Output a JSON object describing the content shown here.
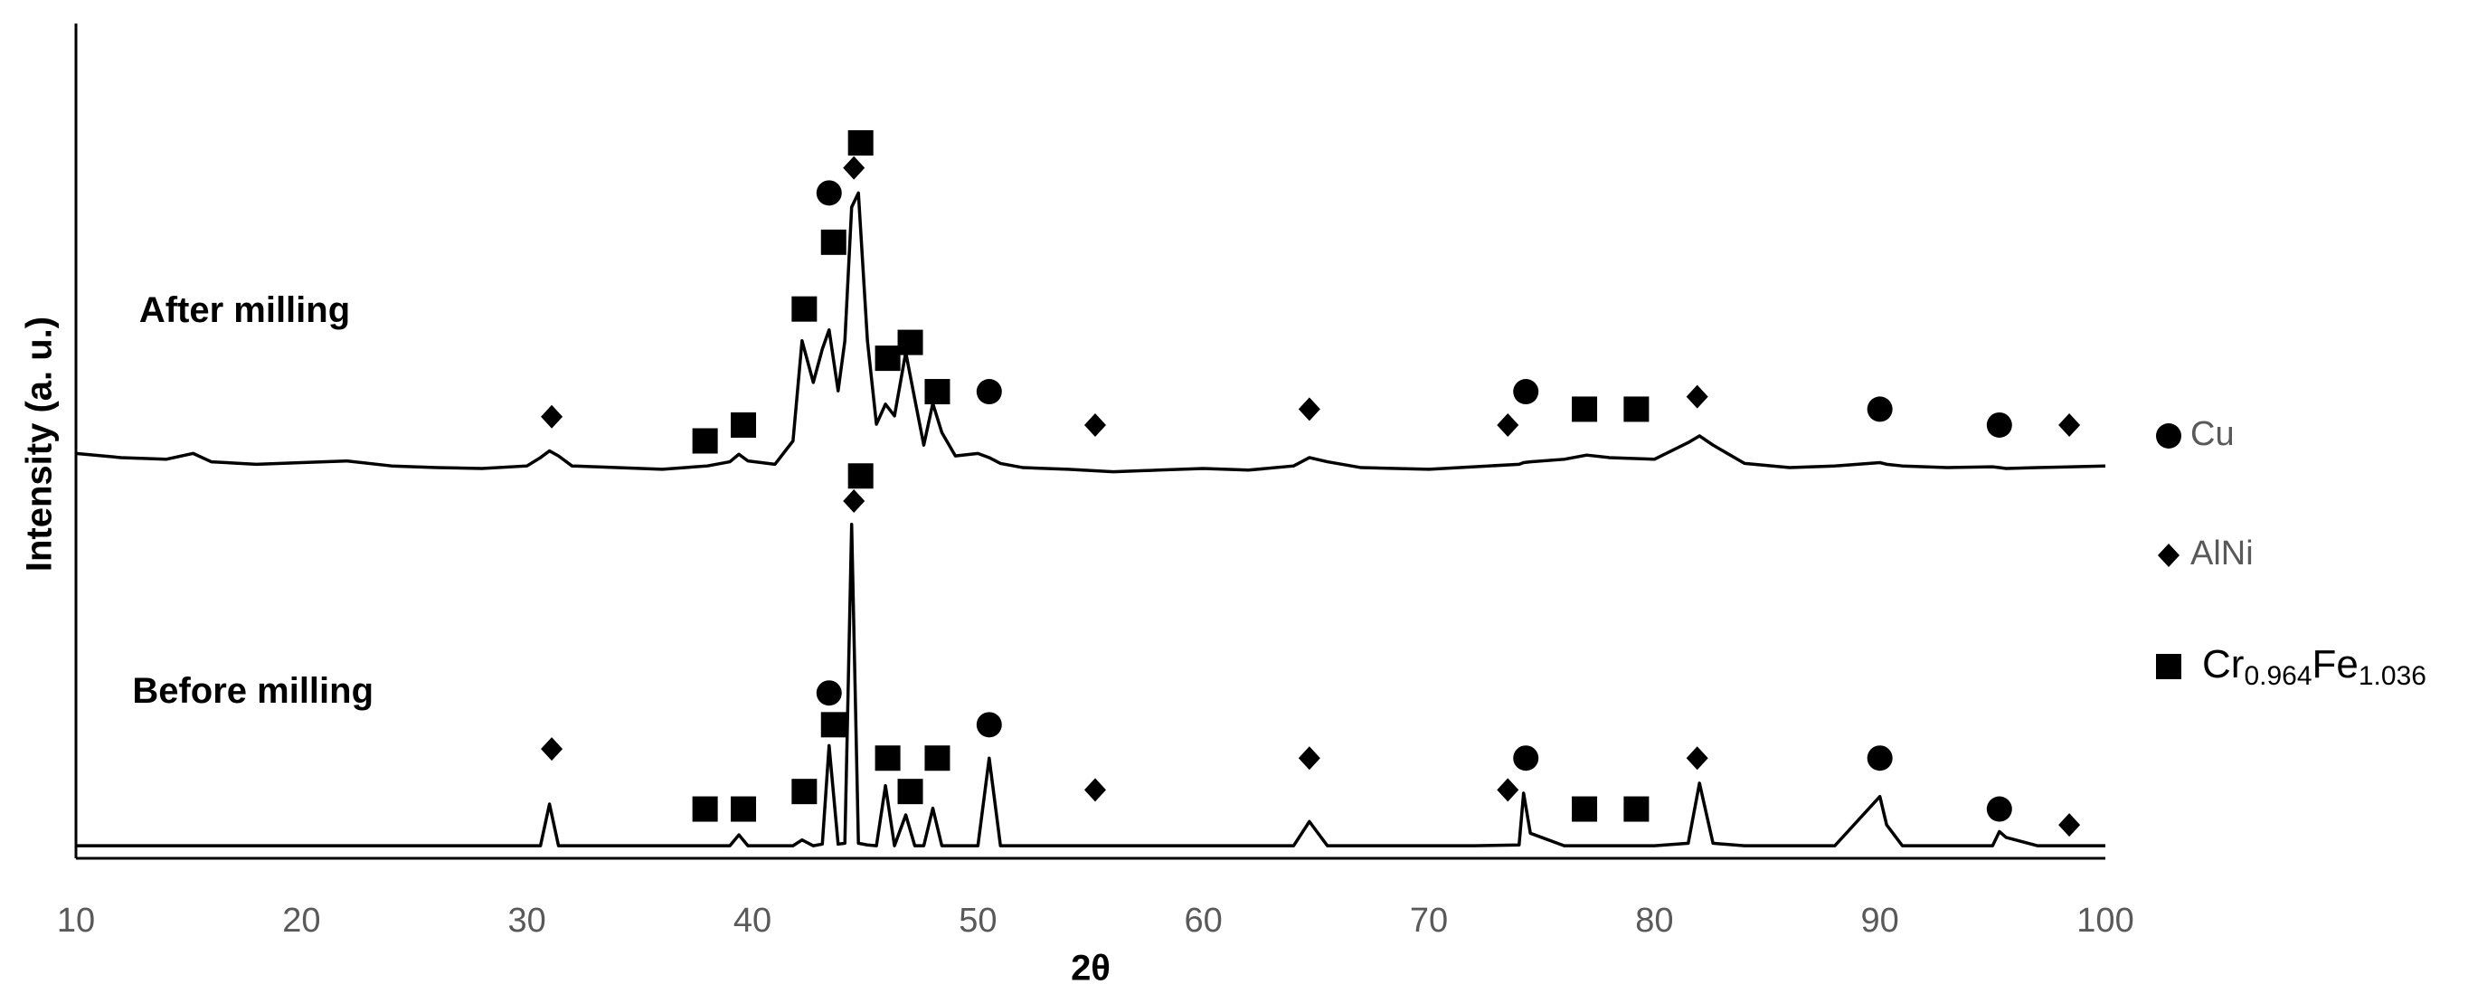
{
  "chart_data": {
    "type": "line",
    "x_label": "2θ",
    "y_label": "Intensity (a. u.)",
    "xlim": [
      10,
      100
    ],
    "xticks": [
      10,
      20,
      30,
      40,
      50,
      60,
      70,
      80,
      90,
      100
    ],
    "ylim": [
      0,
      100
    ],
    "grid": false,
    "legend_position": "right",
    "annotations": [
      {
        "text": "After milling",
        "x": 12.8,
        "y": 65.4
      },
      {
        "text": "Before milling",
        "x": 12.5,
        "y": 19.8
      }
    ],
    "x": [
      10,
      12,
      14,
      15.2,
      16,
      18,
      20,
      22,
      24,
      26,
      28,
      30,
      30.6,
      31,
      31.4,
      32,
      34,
      36,
      38,
      39,
      39.4,
      39.8,
      41,
      41.8,
      42.2,
      42.7,
      43.1,
      43.4,
      43.8,
      44.1,
      44.4,
      44.7,
      45.1,
      45.5,
      45.9,
      46.3,
      46.8,
      47.2,
      47.6,
      48.0,
      48.4,
      49,
      50,
      50.5,
      51,
      52,
      54,
      56,
      58,
      60,
      62,
      64,
      64.7,
      65.5,
      67,
      70,
      72,
      74,
      74.2,
      74.5,
      76,
      77,
      78,
      80,
      81.5,
      82,
      82.6,
      84,
      86,
      88,
      90,
      90.3,
      91,
      93,
      95,
      95.3,
      95.6,
      97,
      100
    ],
    "series": [
      {
        "color": "#000000",
        "values": [
          48.5,
          48,
          47.8,
          48.5,
          47.5,
          47.2,
          47.4,
          47.6,
          47,
          46.8,
          46.7,
          47,
          48,
          48.8,
          48.2,
          47,
          46.8,
          46.6,
          47,
          47.5,
          48.4,
          47.6,
          47.2,
          50,
          62,
          57,
          61,
          63.3,
          56,
          62,
          78,
          79.7,
          62,
          52,
          54.4,
          53,
          60.6,
          55,
          49.5,
          54.5,
          51,
          48.2,
          48.5,
          48,
          47.3,
          46.8,
          46.6,
          46.3,
          46.5,
          46.7,
          46.5,
          47,
          48,
          47.5,
          46.8,
          46.6,
          46.9,
          47.2,
          47.4,
          47.5,
          47.8,
          48.3,
          48,
          47.8,
          49.8,
          50.6,
          49.5,
          47.3,
          46.8,
          47,
          47.4,
          47.2,
          47,
          46.8,
          46.9,
          46.8,
          46.7,
          46.8,
          47
        ]
      },
      {
        "color": "#000000",
        "values": [
          1.5,
          1.5,
          1.5,
          1.5,
          1.5,
          1.5,
          1.5,
          1.5,
          1.5,
          1.5,
          1.5,
          1.5,
          1.5,
          6.5,
          1.5,
          1.5,
          1.5,
          1.5,
          1.5,
          1.5,
          2.8,
          1.5,
          1.5,
          1.5,
          2.2,
          1.5,
          1.7,
          13.5,
          1.7,
          1.8,
          40,
          1.8,
          1.6,
          1.5,
          8.7,
          1.5,
          5.2,
          1.5,
          1.5,
          6,
          1.5,
          1.5,
          1.5,
          12,
          1.5,
          1.5,
          1.5,
          1.5,
          1.5,
          1.5,
          1.5,
          1.5,
          4.4,
          1.5,
          1.5,
          1.5,
          1.5,
          1.6,
          7.8,
          3,
          1.5,
          1.5,
          1.5,
          1.5,
          1.8,
          9,
          1.8,
          1.5,
          1.5,
          1.5,
          7.4,
          4,
          1.5,
          1.5,
          1.5,
          3.2,
          2.5,
          1.5,
          1.5
        ]
      }
    ],
    "phase_markers": [
      {
        "name": "Cu",
        "shape": "circle",
        "color": "#000000",
        "x": [
          43.4,
          50.5,
          74.3,
          90.0,
          95.3,
          43.4,
          50.5,
          74.3,
          90.0,
          95.3
        ],
        "y": [
          79.7,
          55.9,
          55.9,
          53.8,
          51.9,
          19.8,
          16,
          12,
          12,
          5.9
        ]
      },
      {
        "name": "AlNi",
        "shape": "diamond",
        "color": "#000000",
        "x": [
          31.1,
          44.5,
          55.2,
          64.7,
          73.5,
          81.9,
          98.4,
          31.1,
          44.5,
          55.2,
          64.7,
          73.5,
          81.9,
          98.4
        ],
        "y": [
          52.9,
          82.7,
          51.9,
          53.8,
          51.9,
          55.3,
          51.9,
          13.1,
          42.8,
          8.2,
          12,
          8.2,
          12,
          4
        ]
      },
      {
        "name": "Cr0.964Fe1.036",
        "shape": "square",
        "color": "#000000",
        "x": [
          37.9,
          39.6,
          42.3,
          43.6,
          44.8,
          46.0,
          47.0,
          48.2,
          76.9,
          79.2,
          37.9,
          39.6,
          42.3,
          43.6,
          44.8,
          46.0,
          47.0,
          48.2,
          76.9,
          79.2
        ],
        "y": [
          50,
          51.9,
          65.8,
          73.8,
          85.7,
          59.9,
          61.8,
          55.9,
          53.8,
          53.8,
          5.9,
          5.9,
          8,
          16,
          45.8,
          12,
          8,
          12,
          5.9,
          5.9
        ]
      }
    ]
  }
}
